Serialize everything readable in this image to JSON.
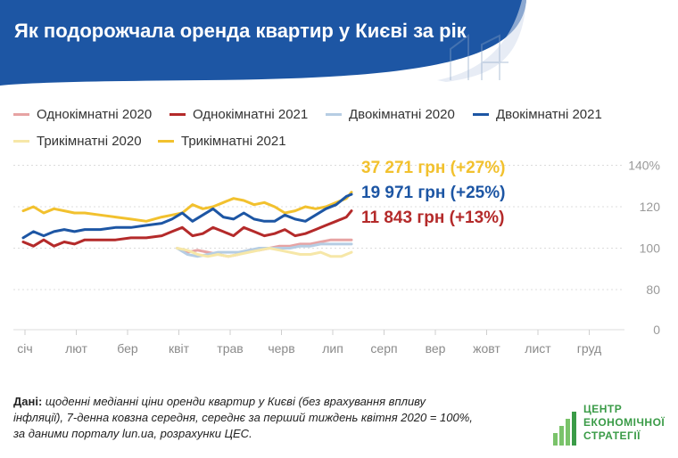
{
  "header": {
    "title": "Як подорожчала оренда квартир у Києві за рік",
    "bg_color": "#1d56a4"
  },
  "legend": [
    {
      "label": "Однокімнатні 2020",
      "color": "#e7a3a3"
    },
    {
      "label": "Однокімнатні 2021",
      "color": "#b42a2a"
    },
    {
      "label": "Двокімнатні 2020",
      "color": "#b6cde3"
    },
    {
      "label": "Двокімнатні 2021",
      "color": "#1d56a4"
    },
    {
      "label": "Трикімнатні 2020",
      "color": "#f6e7a8"
    },
    {
      "label": "Трикімнатні 2021",
      "color": "#f2c12e"
    }
  ],
  "callouts": [
    {
      "text": "37 271 грн (+27%)",
      "color": "#f2c12e"
    },
    {
      "text": "19 971 грн (+25%)",
      "color": "#1d56a4"
    },
    {
      "text": "11 843 грн (+13%)",
      "color": "#b42a2a"
    }
  ],
  "chart_data": {
    "type": "line",
    "x_ticks": [
      "січ",
      "лют",
      "бер",
      "квіт",
      "трав",
      "черв",
      "лип",
      "серп",
      "вер",
      "жовт",
      "лист",
      "груд"
    ],
    "y_ticks": [
      "0",
      "80",
      "100",
      "120",
      "140%"
    ],
    "ylim": [
      0,
      140
    ],
    "x_unit": "month index (0 = січ)",
    "series": [
      {
        "name": "Однокімнатні 2021",
        "color": "#b42a2a",
        "x": [
          0,
          0.2,
          0.4,
          0.6,
          0.8,
          1,
          1.2,
          1.5,
          1.8,
          2.1,
          2.4,
          2.7,
          2.9,
          3.1,
          3.3,
          3.5,
          3.7,
          3.9,
          4.1,
          4.3,
          4.5,
          4.7,
          4.9,
          5.1,
          5.3,
          5.5,
          5.7,
          5.9,
          6.1,
          6.3,
          6.4
        ],
        "y": [
          103,
          101,
          104,
          101,
          103,
          102,
          104,
          104,
          104,
          105,
          105,
          106,
          108,
          110,
          106,
          107,
          110,
          108,
          106,
          110,
          108,
          106,
          107,
          109,
          106,
          107,
          109,
          111,
          113,
          115,
          118
        ]
      },
      {
        "name": "Двокімнатні 2021",
        "color": "#1d56a4",
        "x": [
          0,
          0.2,
          0.4,
          0.6,
          0.8,
          1,
          1.2,
          1.5,
          1.8,
          2.1,
          2.4,
          2.7,
          2.9,
          3.1,
          3.3,
          3.5,
          3.7,
          3.9,
          4.1,
          4.3,
          4.5,
          4.7,
          4.9,
          5.1,
          5.3,
          5.5,
          5.7,
          5.9,
          6.1,
          6.3,
          6.4
        ],
        "y": [
          105,
          108,
          106,
          108,
          109,
          108,
          109,
          109,
          110,
          110,
          111,
          112,
          114,
          117,
          113,
          116,
          119,
          115,
          114,
          117,
          114,
          113,
          113,
          116,
          114,
          113,
          116,
          119,
          121,
          125,
          126
        ]
      },
      {
        "name": "Трикімнатні 2021",
        "color": "#f2c12e",
        "x": [
          0,
          0.2,
          0.4,
          0.6,
          0.8,
          1,
          1.2,
          1.5,
          1.8,
          2.1,
          2.4,
          2.7,
          2.9,
          3.1,
          3.3,
          3.5,
          3.7,
          3.9,
          4.1,
          4.3,
          4.5,
          4.7,
          4.9,
          5.1,
          5.3,
          5.5,
          5.7,
          5.9,
          6.1,
          6.3,
          6.4
        ],
        "y": [
          118,
          120,
          117,
          119,
          118,
          117,
          117,
          116,
          115,
          114,
          113,
          115,
          116,
          117,
          121,
          119,
          120,
          122,
          124,
          123,
          121,
          122,
          120,
          117,
          118,
          120,
          119,
          120,
          122,
          124,
          127
        ]
      },
      {
        "name": "Однокімнатні 2020",
        "color": "#e7a3a3",
        "x": [
          3,
          3.2,
          3.4,
          3.6,
          3.8,
          4,
          4.2,
          4.4,
          4.6,
          4.8,
          5,
          5.2,
          5.4,
          5.6,
          5.8,
          6,
          6.2,
          6.4
        ],
        "y": [
          100,
          98,
          99,
          98,
          97,
          96,
          97,
          99,
          99,
          100,
          101,
          101,
          102,
          102,
          103,
          104,
          104,
          104
        ]
      },
      {
        "name": "Двокімнатні 2020",
        "color": "#b6cde3",
        "x": [
          3,
          3.2,
          3.4,
          3.6,
          3.8,
          4,
          4.2,
          4.4,
          4.6,
          4.8,
          5,
          5.2,
          5.4,
          5.6,
          5.8,
          6,
          6.2,
          6.4
        ],
        "y": [
          100,
          97,
          96,
          97,
          98,
          98,
          98,
          99,
          100,
          100,
          100,
          100,
          101,
          101,
          102,
          102,
          102,
          102
        ]
      },
      {
        "name": "Трикімнатні 2020",
        "color": "#f6e7a8",
        "x": [
          3,
          3.2,
          3.4,
          3.6,
          3.8,
          4,
          4.2,
          4.4,
          4.6,
          4.8,
          5,
          5.2,
          5.4,
          5.6,
          5.8,
          6,
          6.2,
          6.4
        ],
        "y": [
          100,
          99,
          97,
          96,
          97,
          96,
          97,
          98,
          99,
          100,
          99,
          98,
          97,
          97,
          98,
          96,
          96,
          98
        ]
      }
    ]
  },
  "note": {
    "lead": "Дані:",
    "body": " щоденні медіанні ціни оренди квартир у Києві (без врахування впливу інфляції), 7-денна ковзна середня, середнє за перший тиждень квітня 2020 = 100%, за даними порталу lun.ua, розрахунки ЦЕС."
  },
  "logo": {
    "lines": [
      "ЦЕНТР",
      "ЕКОНОМІЧНОЇ",
      "СТРАТЕГІЇ"
    ],
    "color": "#3a9b47"
  }
}
